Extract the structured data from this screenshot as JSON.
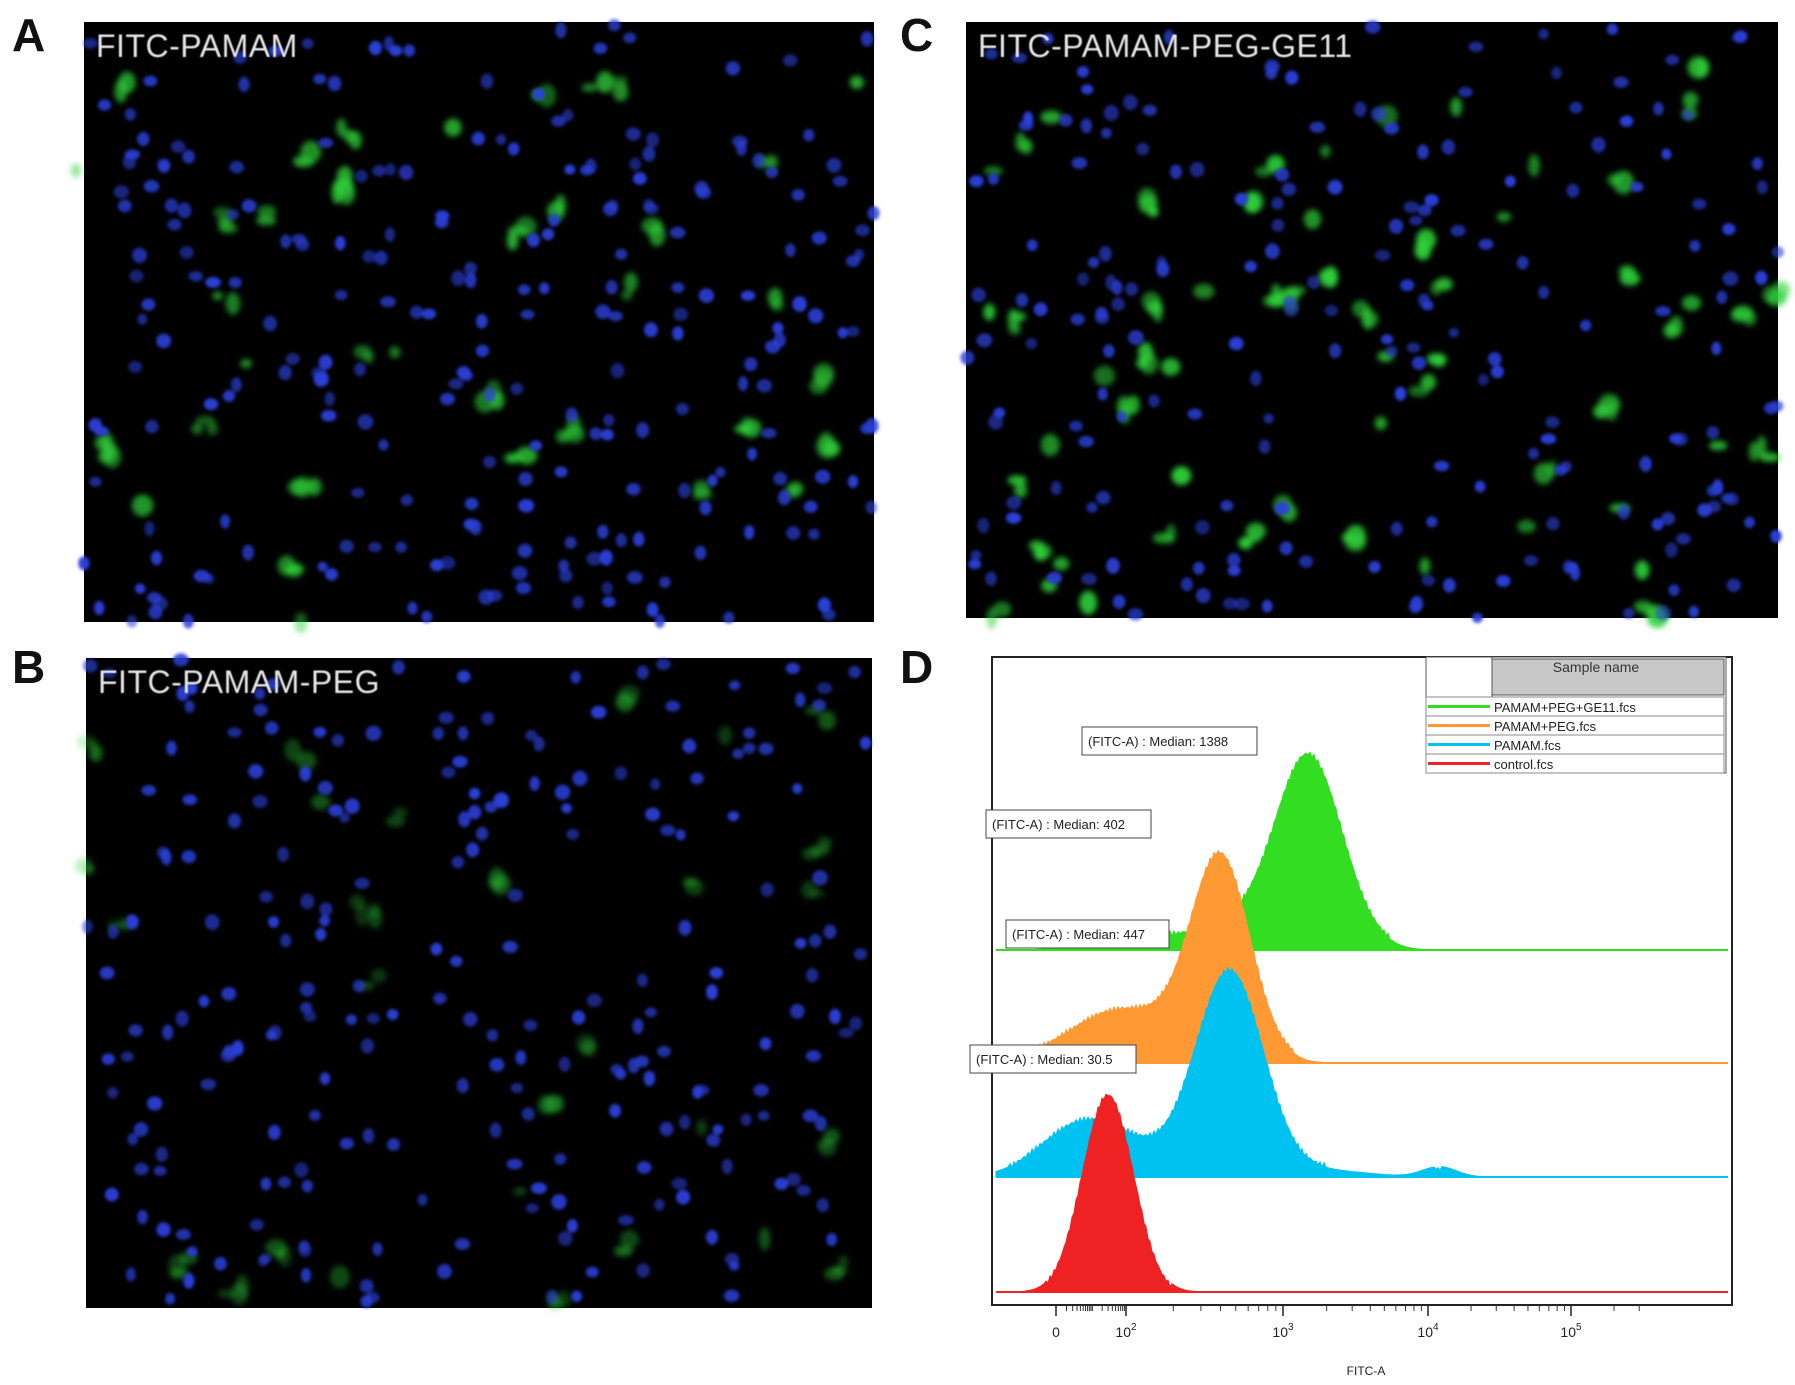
{
  "panels": {
    "A": {
      "letter": "A",
      "title": "FITC-PAMAM"
    },
    "B": {
      "letter": "B",
      "title": "FITC-PAMAM-PEG"
    },
    "C": {
      "letter": "C",
      "title": "FITC-PAMAM-PEG-GE11"
    },
    "D": {
      "letter": "D"
    }
  },
  "colors": {
    "background_micro": "#000000",
    "nuclei": "#2b3fd6",
    "fitc": "#2fd13a",
    "legend_header": "#c8c8c8"
  },
  "chart_data": {
    "type": "area",
    "title": "",
    "xlabel": "FITC-A",
    "ylabel": "",
    "x_scale": "biexponential (log)",
    "x_tick_labels": [
      "0",
      "10^2",
      "10^3",
      "10^4",
      "10^5"
    ],
    "x_tick_values": [
      0,
      100,
      1000,
      10000,
      100000
    ],
    "legend": {
      "header": "Sample name",
      "placement": "top-right",
      "entries": [
        {
          "name": "PAMAM+PEG+GE11.fcs",
          "color": "#33dd22"
        },
        {
          "name": "PAMAM+PEG.fcs",
          "color": "#ff9933"
        },
        {
          "name": "PAMAM.fcs",
          "color": "#00c2f0"
        },
        {
          "name": "control.fcs",
          "color": "#ee2222"
        }
      ]
    },
    "series": [
      {
        "name": "PAMAM+PEG+GE11.fcs",
        "color": "#33dd22",
        "median_label": "(FITC-A)  : Median: 1388",
        "median": 1388,
        "peak_x": 1500
      },
      {
        "name": "PAMAM+PEG.fcs",
        "color": "#ff9933",
        "median_label": "(FITC-A)  : Median: 402",
        "median": 402,
        "peak_x": 400
      },
      {
        "name": "PAMAM.fcs",
        "color": "#00c2f0",
        "median_label": "(FITC-A)  : Median: 447",
        "median": 447,
        "peak_x": 460
      },
      {
        "name": "control.fcs",
        "color": "#ee2222",
        "median_label": "(FITC-A)  : Median: 30.5",
        "median": 30.5,
        "peak_x": 30
      }
    ]
  }
}
